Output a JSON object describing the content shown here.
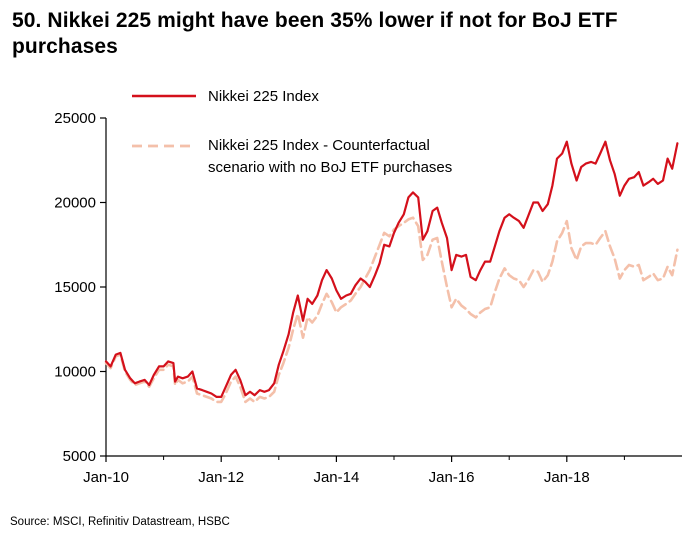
{
  "title": "50. Nikkei 225 might have been 35% lower if not for BoJ ETF purchases",
  "source": "Source: MSCI, Refinitiv Datastream, HSBC",
  "colors": {
    "actual": "#d4101b",
    "counterfactual": "#f4c0aa",
    "axis": "#000000"
  },
  "chart_data": {
    "type": "line",
    "title": "50. Nikkei 225 might have been 35% lower if not for BoJ ETF purchases",
    "xlabel": "",
    "ylabel": "",
    "x_unit": "years since Jan-2010",
    "xlim": [
      0,
      10
    ],
    "ylim": [
      5000,
      25000
    ],
    "y_ticks": [
      5000,
      10000,
      15000,
      20000,
      25000
    ],
    "y_tick_labels": [
      "5000",
      "10000",
      "15000",
      "20000",
      "25000"
    ],
    "x_ticks": [
      0,
      2,
      4,
      6,
      8
    ],
    "x_tick_labels": [
      "Jan-10",
      "Jan-12",
      "Jan-14",
      "Jan-16",
      "Jan-18"
    ],
    "legend": [
      {
        "name": "Nikkei 225 Index",
        "lines": [
          "Nikkei 225 Index"
        ],
        "style": "solid"
      },
      {
        "name": "Nikkei 225 Index - Counterfactual scenario with no BoJ ETF purchases",
        "lines": [
          "Nikkei 225 Index - Counterfactual",
          "scenario with no BoJ ETF purchases"
        ],
        "style": "dashed"
      }
    ],
    "series": [
      {
        "name": "Nikkei 225 Index",
        "x": [
          0.0,
          0.08,
          0.17,
          0.25,
          0.33,
          0.42,
          0.5,
          0.58,
          0.67,
          0.75,
          0.83,
          0.92,
          1.0,
          1.08,
          1.17,
          1.2,
          1.25,
          1.33,
          1.42,
          1.5,
          1.58,
          1.67,
          1.75,
          1.83,
          1.92,
          2.0,
          2.08,
          2.17,
          2.25,
          2.33,
          2.42,
          2.5,
          2.58,
          2.67,
          2.75,
          2.83,
          2.92,
          3.0,
          3.08,
          3.17,
          3.25,
          3.33,
          3.42,
          3.5,
          3.58,
          3.67,
          3.75,
          3.83,
          3.92,
          4.0,
          4.08,
          4.17,
          4.25,
          4.33,
          4.42,
          4.5,
          4.58,
          4.67,
          4.75,
          4.83,
          4.92,
          5.0,
          5.08,
          5.17,
          5.25,
          5.33,
          5.42,
          5.5,
          5.58,
          5.67,
          5.75,
          5.83,
          5.92,
          6.0,
          6.08,
          6.17,
          6.25,
          6.33,
          6.42,
          6.5,
          6.58,
          6.67,
          6.75,
          6.83,
          6.92,
          7.0,
          7.08,
          7.17,
          7.25,
          7.33,
          7.42,
          7.5,
          7.58,
          7.67,
          7.75,
          7.83,
          7.92,
          8.0,
          8.08,
          8.17,
          8.25,
          8.33,
          8.42,
          8.5,
          8.58,
          8.67,
          8.75,
          8.83,
          8.92,
          9.0,
          9.08,
          9.17,
          9.25,
          9.33,
          9.42,
          9.5,
          9.58,
          9.67,
          9.75,
          9.83,
          9.92
        ],
        "values": [
          10600,
          10300,
          11000,
          11100,
          10100,
          9600,
          9300,
          9400,
          9500,
          9200,
          9800,
          10300,
          10300,
          10600,
          10500,
          9400,
          9700,
          9600,
          9700,
          10000,
          9000,
          8900,
          8800,
          8700,
          8500,
          8500,
          9100,
          9800,
          10100,
          9500,
          8600,
          8800,
          8600,
          8900,
          8800,
          8900,
          9300,
          10400,
          11200,
          12200,
          13500,
          14500,
          13000,
          14300,
          14000,
          14500,
          15400,
          16000,
          15500,
          14800,
          14300,
          14500,
          14600,
          15100,
          15500,
          15300,
          15000,
          15700,
          16400,
          17500,
          17400,
          18200,
          18800,
          19300,
          20300,
          20600,
          20300,
          17800,
          18300,
          19500,
          19700,
          18800,
          17900,
          16000,
          16900,
          16800,
          16900,
          15600,
          15400,
          16000,
          16500,
          16500,
          17400,
          18300,
          19100,
          19300,
          19100,
          18900,
          18500,
          19200,
          20000,
          20000,
          19500,
          19900,
          21000,
          22600,
          22900,
          23600,
          22300,
          21300,
          22100,
          22300,
          22400,
          22300,
          22900,
          23600,
          22500,
          21700,
          20400,
          21000,
          21400,
          21500,
          21800,
          21000,
          21200,
          21400,
          21100,
          21300,
          22600,
          22000,
          23500
        ]
      },
      {
        "name": "Nikkei 225 Index - Counterfactual scenario with no BoJ ETF purchases",
        "x": [
          0.0,
          0.08,
          0.17,
          0.25,
          0.33,
          0.42,
          0.5,
          0.58,
          0.67,
          0.75,
          0.83,
          0.92,
          1.0,
          1.08,
          1.17,
          1.2,
          1.25,
          1.33,
          1.42,
          1.5,
          1.58,
          1.67,
          1.75,
          1.83,
          1.92,
          2.0,
          2.08,
          2.17,
          2.25,
          2.33,
          2.42,
          2.5,
          2.58,
          2.67,
          2.75,
          2.83,
          2.92,
          3.0,
          3.08,
          3.17,
          3.25,
          3.33,
          3.42,
          3.5,
          3.58,
          3.67,
          3.75,
          3.83,
          3.92,
          4.0,
          4.08,
          4.17,
          4.25,
          4.33,
          4.42,
          4.5,
          4.58,
          4.67,
          4.75,
          4.83,
          4.92,
          5.0,
          5.08,
          5.17,
          5.25,
          5.33,
          5.42,
          5.5,
          5.58,
          5.67,
          5.75,
          5.83,
          5.92,
          6.0,
          6.08,
          6.17,
          6.25,
          6.33,
          6.42,
          6.5,
          6.58,
          6.67,
          6.75,
          6.83,
          6.92,
          7.0,
          7.08,
          7.17,
          7.25,
          7.33,
          7.42,
          7.5,
          7.58,
          7.67,
          7.75,
          7.83,
          7.92,
          8.0,
          8.08,
          8.17,
          8.25,
          8.33,
          8.42,
          8.5,
          8.58,
          8.67,
          8.75,
          8.83,
          8.92,
          9.0,
          9.08,
          9.17,
          9.25,
          9.33,
          9.42,
          9.5,
          9.58,
          9.67,
          9.75,
          9.83,
          9.92
        ],
        "values": [
          10500,
          10200,
          10900,
          11000,
          10000,
          9500,
          9200,
          9300,
          9400,
          9100,
          9600,
          10100,
          10100,
          10400,
          10300,
          9200,
          9500,
          9300,
          9400,
          9700,
          8700,
          8600,
          8500,
          8400,
          8200,
          8200,
          8700,
          9400,
          9700,
          9100,
          8200,
          8400,
          8200,
          8500,
          8400,
          8500,
          8800,
          9800,
          10500,
          11400,
          12500,
          13400,
          12000,
          13200,
          12900,
          13300,
          14000,
          14600,
          14100,
          13500,
          13800,
          14000,
          14200,
          14600,
          15000,
          15500,
          16000,
          16800,
          17500,
          18200,
          18000,
          18400,
          18600,
          18800,
          19000,
          19100,
          18600,
          16600,
          16900,
          17800,
          17900,
          16500,
          15000,
          13800,
          14300,
          13900,
          13700,
          13400,
          13200,
          13500,
          13700,
          13800,
          14700,
          15500,
          16100,
          15700,
          15500,
          15400,
          15000,
          15400,
          16000,
          15900,
          15300,
          15700,
          16500,
          17700,
          18200,
          18900,
          17300,
          16600,
          17400,
          17600,
          17600,
          17500,
          17900,
          18300,
          17400,
          16700,
          15500,
          16000,
          16300,
          16200,
          16300,
          15400,
          15600,
          15800,
          15400,
          15500,
          16200,
          15700,
          17200
        ]
      }
    ]
  }
}
